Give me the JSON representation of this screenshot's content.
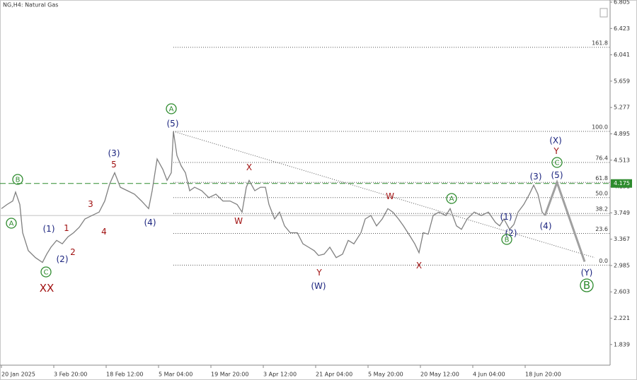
{
  "chart_data": {
    "type": "line",
    "title": "NG,H4: Natural Gas",
    "color": "#808080",
    "x": [
      0,
      8,
      16,
      20,
      26,
      30,
      38,
      48,
      58,
      64,
      70,
      78,
      86,
      94,
      102,
      110,
      118,
      128,
      138,
      146,
      153,
      160,
      168,
      178,
      188,
      198,
      208,
      213,
      220,
      228,
      234,
      240,
      243,
      248,
      254,
      260,
      266,
      273,
      283,
      293,
      303,
      313,
      323,
      333,
      340,
      346,
      350,
      358,
      366,
      373,
      378,
      386,
      393,
      400,
      408,
      418,
      426,
      434,
      442,
      448,
      456,
      464,
      473,
      482,
      490,
      498,
      508,
      514,
      522,
      530,
      538,
      546,
      553,
      561,
      568,
      578,
      584,
      590,
      596,
      603,
      610,
      618,
      628,
      634,
      643,
      650,
      658,
      668,
      678,
      688,
      698,
      704,
      710,
      718,
      724,
      730,
      738,
      746,
      752,
      758,
      764,
      768
    ],
    "values": [
      3.81,
      3.87,
      3.92,
      4.05,
      3.87,
      3.46,
      3.2,
      3.1,
      3.03,
      3.15,
      3.25,
      3.35,
      3.3,
      3.4,
      3.46,
      3.54,
      3.66,
      3.71,
      3.76,
      3.92,
      4.17,
      4.33,
      4.12,
      4.07,
      4.02,
      3.92,
      3.81,
      4.07,
      4.53,
      4.38,
      4.22,
      4.33,
      4.93,
      4.58,
      4.43,
      4.33,
      4.07,
      4.12,
      4.07,
      3.97,
      4.02,
      3.92,
      3.92,
      3.87,
      3.76,
      4.12,
      4.22,
      4.07,
      4.12,
      4.12,
      3.87,
      3.66,
      3.76,
      3.56,
      3.46,
      3.46,
      3.3,
      3.25,
      3.2,
      3.13,
      3.15,
      3.25,
      3.1,
      3.15,
      3.35,
      3.3,
      3.46,
      3.66,
      3.71,
      3.56,
      3.66,
      3.81,
      3.76,
      3.66,
      3.56,
      3.4,
      3.3,
      3.17,
      3.46,
      3.44,
      3.71,
      3.76,
      3.71,
      3.81,
      3.56,
      3.51,
      3.66,
      3.76,
      3.71,
      3.76,
      3.61,
      3.56,
      3.66,
      3.51,
      3.58,
      3.76,
      3.87,
      4.02,
      4.15,
      4.02,
      3.76,
      3.71
    ],
    "projection": {
      "x": [
        768,
        785,
        824
      ],
      "values": [
        3.71,
        4.19,
        3.04
      ],
      "color": "#a0a0a0"
    },
    "trendline": {
      "x": [
        243,
        838
      ],
      "values": [
        4.93,
        3.1
      ]
    },
    "current_price": 4.175,
    "current_price_color": "#2e8b2e",
    "bid_line": 3.71,
    "fib_start_x": 243,
    "fib_levels": [
      {
        "value": 6.15,
        "label": "161.8"
      },
      {
        "value": 4.93,
        "label": "100.0"
      },
      {
        "value": 4.48,
        "label": "76.4"
      },
      {
        "value": 4.19,
        "label": "61.8"
      },
      {
        "value": 3.97,
        "label": "50.0"
      },
      {
        "value": 3.74,
        "label": "38.2"
      },
      {
        "value": 3.45,
        "label": "23.6"
      },
      {
        "value": 2.99,
        "label": "0.0"
      }
    ],
    "xlim": [
      -2,
      860
    ],
    "ylim": [
      1.56,
      6.836
    ],
    "xticks": [
      {
        "value": 0,
        "label": "20 Jan 2025"
      },
      {
        "value": 74,
        "label": "3 Feb 20:00"
      },
      {
        "value": 148,
        "label": "18 Feb 12:00"
      },
      {
        "value": 222,
        "label": "5 Mar 04:00"
      },
      {
        "value": 296,
        "label": "19 Mar 20:00"
      },
      {
        "value": 370,
        "label": "3 Apr 12:00"
      },
      {
        "value": 444,
        "label": "21 Apr 04:00"
      },
      {
        "value": 518,
        "label": "5 May 20:00"
      },
      {
        "value": 592,
        "label": "20 May 12:00"
      },
      {
        "value": 666,
        "label": "4 Jun 04:00"
      },
      {
        "value": 740,
        "label": "18 Jun 20:00"
      }
    ],
    "yticks": [
      6.805,
      6.423,
      6.041,
      5.659,
      5.277,
      4.895,
      4.513,
      4.131,
      3.749,
      3.367,
      2.985,
      2.603,
      2.221,
      1.839
    ],
    "annotations": [
      {
        "text": "A",
        "color": "#2e8b2e",
        "circled": true
      },
      {
        "text": "B",
        "color": "#2e8b2e",
        "circled": true
      },
      {
        "text": "C",
        "color": "#2e8b2e",
        "circled": true
      },
      {
        "text": "XX",
        "color": "#a01010",
        "circled": false
      },
      {
        "text": "(1)",
        "color": "#1a237e",
        "circled": false
      },
      {
        "text": "(2)",
        "color": "#1a237e",
        "circled": false
      },
      {
        "text": "1",
        "color": "#a01010",
        "circled": false
      },
      {
        "text": "2",
        "color": "#a01010",
        "circled": false
      },
      {
        "text": "3",
        "color": "#a01010",
        "circled": false
      },
      {
        "text": "4",
        "color": "#a01010",
        "circled": false
      },
      {
        "text": "(3)",
        "color": "#1a237e",
        "circled": false
      },
      {
        "text": "5",
        "color": "#a01010",
        "circled": false
      },
      {
        "text": "(4)",
        "color": "#1a237e",
        "circled": false
      },
      {
        "text": "A",
        "color": "#2e8b2e",
        "circled": true
      },
      {
        "text": "(5)",
        "color": "#1a237e",
        "circled": false
      },
      {
        "text": "X",
        "color": "#a01010",
        "circled": false
      },
      {
        "text": "W",
        "color": "#a01010",
        "circled": false
      },
      {
        "text": "Y",
        "color": "#a01010",
        "circled": false
      },
      {
        "text": "(W)",
        "color": "#1a237e",
        "circled": false
      },
      {
        "text": "W",
        "color": "#a01010",
        "circled": false
      },
      {
        "text": "X",
        "color": "#a01010",
        "circled": false
      },
      {
        "text": "A",
        "color": "#2e8b2e",
        "circled": true
      },
      {
        "text": "(1)",
        "color": "#1a237e",
        "circled": false
      },
      {
        "text": "(2)",
        "color": "#1a237e",
        "circled": false
      },
      {
        "text": "B",
        "color": "#2e8b2e",
        "circled": true
      },
      {
        "text": "(3)",
        "color": "#1a237e",
        "circled": false
      },
      {
        "text": "(5)",
        "color": "#1a237e",
        "circled": false
      },
      {
        "text": "(4)",
        "color": "#1a237e",
        "circled": false
      },
      {
        "text": "(X)",
        "color": "#1a237e",
        "circled": false
      },
      {
        "text": "Y",
        "color": "#a01010",
        "circled": false
      },
      {
        "text": "C",
        "color": "#2e8b2e",
        "circled": true
      },
      {
        "text": "(Y)",
        "color": "#1a237e",
        "circled": false
      },
      {
        "text": "B",
        "color": "#2e8b2e",
        "circled": true
      }
    ]
  }
}
